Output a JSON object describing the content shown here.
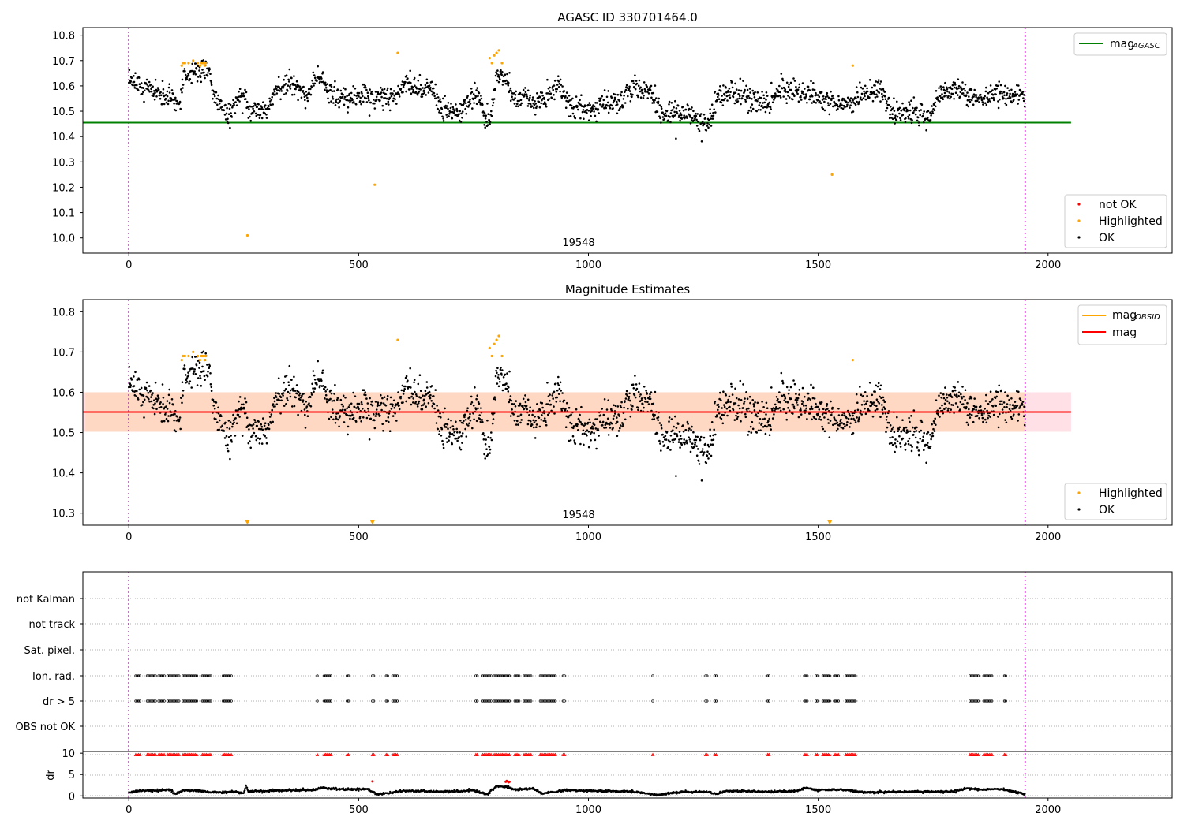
{
  "chart_data": [
    {
      "type": "scatter",
      "title": "AGASC ID 330701464.0",
      "annotation": "19548",
      "xlim": [
        -100,
        2270
      ],
      "ylim": [
        9.94,
        10.83
      ],
      "xticks": [
        0,
        500,
        1000,
        1500,
        2000
      ],
      "xtick_labels": [
        "0",
        "500",
        "1000",
        "1500",
        "2000"
      ],
      "yticks": [
        10.0,
        10.1,
        10.2,
        10.3,
        10.4,
        10.5,
        10.6,
        10.7,
        10.8
      ],
      "ytick_labels": [
        "10.0",
        "10.1",
        "10.2",
        "10.3",
        "10.4",
        "10.5",
        "10.6",
        "10.7",
        "10.8"
      ],
      "vlines": [
        0,
        1950
      ],
      "hline": {
        "name_main": "mag",
        "name_sub": "AGASC",
        "y": 10.455,
        "x": [
          -100,
          2050
        ],
        "color": "#008000"
      },
      "legend_lines_placement": "top-right",
      "legend_points_placement": "lower-right",
      "legend_points": [
        {
          "label": "not OK",
          "color": "#ff0000"
        },
        {
          "label": "Highlighted",
          "color": "#ffa500"
        },
        {
          "label": "OK",
          "color": "#000000"
        }
      ],
      "series": [
        {
          "name": "OK",
          "color": "#000000",
          "profile_x": [
            0,
            15,
            40,
            70,
            95,
            110,
            120,
            140,
            160,
            175,
            185,
            200,
            215,
            225,
            240,
            255,
            265,
            280,
            300,
            320,
            340,
            360,
            375,
            390,
            400,
            420,
            440,
            470,
            500,
            520,
            540,
            560,
            580,
            600,
            620,
            640,
            660,
            680,
            700,
            720,
            740,
            760,
            775,
            785,
            800,
            820,
            840,
            860,
            880,
            900,
            920,
            940,
            960,
            980,
            1000,
            1020,
            1040,
            1060,
            1080,
            1100,
            1120,
            1140,
            1160,
            1180,
            1200,
            1220,
            1240,
            1260,
            1280,
            1300,
            1320,
            1340,
            1360,
            1380,
            1400,
            1420,
            1440,
            1460,
            1480,
            1500,
            1520,
            1540,
            1560,
            1580,
            1600,
            1620,
            1640,
            1660,
            1680,
            1700,
            1720,
            1740,
            1760,
            1780,
            1800,
            1820,
            1840,
            1860,
            1880,
            1900,
            1920,
            1950
          ],
          "profile_y": [
            10.6,
            10.61,
            10.59,
            10.57,
            10.55,
            10.52,
            10.64,
            10.66,
            10.66,
            10.66,
            10.55,
            10.53,
            10.48,
            10.51,
            10.55,
            10.56,
            10.5,
            10.5,
            10.51,
            10.59,
            10.61,
            10.6,
            10.57,
            10.56,
            10.62,
            10.63,
            10.56,
            10.55,
            10.55,
            10.56,
            10.54,
            10.56,
            10.56,
            10.61,
            10.6,
            10.58,
            10.6,
            10.5,
            10.51,
            10.5,
            10.53,
            10.57,
            10.48,
            10.46,
            10.64,
            10.63,
            10.55,
            10.55,
            10.53,
            10.54,
            10.57,
            10.59,
            10.52,
            10.51,
            10.51,
            10.52,
            10.53,
            10.53,
            10.56,
            10.6,
            10.58,
            10.55,
            10.5,
            10.49,
            10.49,
            10.5,
            10.45,
            10.45,
            10.55,
            10.57,
            10.57,
            10.56,
            10.54,
            10.54,
            10.54,
            10.58,
            10.58,
            10.57,
            10.57,
            10.56,
            10.54,
            10.53,
            10.53,
            10.55,
            10.57,
            10.58,
            10.58,
            10.49,
            10.49,
            10.5,
            10.49,
            10.47,
            10.56,
            10.58,
            10.59,
            10.57,
            10.55,
            10.55,
            10.57,
            10.57,
            10.56,
            10.58
          ],
          "count": 1950,
          "noise": 0.022
        },
        {
          "name": "Highlighted",
          "color": "#ffa500",
          "x": [
            115,
            118,
            122,
            130,
            140,
            150,
            155,
            158,
            160,
            163,
            165,
            167,
            258,
            535,
            585,
            785,
            790,
            795,
            800,
            805,
            812,
            1530,
            1575
          ],
          "y": [
            10.68,
            10.69,
            10.69,
            10.69,
            10.7,
            10.69,
            10.68,
            10.69,
            10.69,
            10.69,
            10.68,
            10.69,
            10.01,
            10.21,
            10.73,
            10.71,
            10.69,
            10.72,
            10.73,
            10.74,
            10.69,
            10.25,
            10.68
          ]
        }
      ]
    },
    {
      "type": "scatter",
      "title": "Magnitude Estimates",
      "annotation": "19548",
      "xlim": [
        -100,
        2270
      ],
      "ylim": [
        10.27,
        10.83
      ],
      "xticks": [
        0,
        500,
        1000,
        1500,
        2000
      ],
      "xtick_labels": [
        "0",
        "500",
        "1000",
        "1500",
        "2000"
      ],
      "yticks": [
        10.3,
        10.4,
        10.5,
        10.6,
        10.7,
        10.8
      ],
      "ytick_labels": [
        "10.3",
        "10.4",
        "10.5",
        "10.6",
        "10.7",
        "10.8"
      ],
      "vlines": [
        0,
        1950
      ],
      "band": {
        "y": [
          10.502,
          10.6
        ],
        "x": [
          -100,
          2050
        ],
        "fill_outer": "#ffe0e6",
        "fill_inner": "#ffd8c4"
      },
      "lines": [
        {
          "name_main": "mag",
          "name_sub": "OBSID",
          "color": "#ffa500"
        },
        {
          "name_main": "mag",
          "name_sub": "",
          "color": "#ff0000",
          "y": 10.551,
          "x": [
            -100,
            2050
          ]
        }
      ],
      "offscale_markers_x": [
        258,
        530,
        1525
      ],
      "legend_lines_placement": "top-right",
      "legend_points_placement": "lower-right",
      "legend_points": [
        {
          "label": "Highlighted",
          "color": "#ffa500"
        },
        {
          "label": "OK",
          "color": "#000000"
        }
      ]
    },
    {
      "type": "scatter",
      "title": "",
      "xlim": [
        -100,
        2270
      ],
      "xticks": [
        0,
        500,
        1000,
        1500,
        2000
      ],
      "xtick_labels": [
        "0",
        "500",
        "1000",
        "1500",
        "2000"
      ],
      "vlines": [
        0,
        1950
      ],
      "flag_rows": [
        "not Kalman",
        "not track",
        "Sat. pixel.",
        "Ion. rad.",
        "dr > 5",
        "OBS not OK"
      ],
      "flag_clusters": [
        [
          15,
          25
        ],
        [
          40,
          58
        ],
        [
          65,
          78
        ],
        [
          85,
          110
        ],
        [
          118,
          150
        ],
        [
          160,
          180
        ],
        [
          205,
          225
        ],
        [
          410,
          412
        ],
        [
          425,
          440
        ],
        [
          475,
          478
        ],
        [
          530,
          535
        ],
        [
          560,
          563
        ],
        [
          575,
          585
        ],
        [
          755,
          760
        ],
        [
          770,
          790
        ],
        [
          795,
          830
        ],
        [
          840,
          850
        ],
        [
          860,
          875
        ],
        [
          895,
          930
        ],
        [
          945,
          950
        ],
        [
          1140,
          1142
        ],
        [
          1255,
          1258
        ],
        [
          1275,
          1278
        ],
        [
          1390,
          1395
        ],
        [
          1470,
          1478
        ],
        [
          1495,
          1498
        ],
        [
          1510,
          1525
        ],
        [
          1535,
          1545
        ],
        [
          1560,
          1582
        ],
        [
          1830,
          1850
        ],
        [
          1860,
          1880
        ],
        [
          1905,
          1908
        ]
      ],
      "dr_panel": {
        "ylabel": "dr",
        "yticks": [
          0,
          5,
          10
        ],
        "ytick_labels": [
          "0",
          "5",
          "10"
        ],
        "ylim": [
          -0.5,
          10.4
        ],
        "profile_x": [
          0,
          30,
          60,
          90,
          100,
          120,
          150,
          175,
          200,
          230,
          250,
          255,
          260,
          300,
          350,
          400,
          420,
          470,
          520,
          540,
          600,
          650,
          700,
          750,
          780,
          800,
          820,
          840,
          880,
          900,
          950,
          1000,
          1050,
          1100,
          1150,
          1200,
          1250,
          1280,
          1300,
          1350,
          1400,
          1450,
          1470,
          1500,
          1550,
          1600,
          1650,
          1700,
          1750,
          1800,
          1820,
          1850,
          1900,
          1950
        ],
        "profile_y": [
          0.8,
          1.3,
          1.2,
          1.5,
          0.4,
          1.4,
          1.2,
          0.9,
          0.8,
          1.0,
          0.6,
          2.4,
          1.0,
          1.2,
          1.3,
          1.4,
          1.9,
          1.5,
          1.6,
          0.3,
          1.2,
          1.1,
          1.0,
          1.3,
          0.4,
          2.3,
          2.1,
          1.5,
          1.7,
          0.5,
          1.4,
          1.2,
          1.1,
          1.0,
          0.2,
          0.9,
          1.0,
          0.5,
          1.2,
          1.1,
          1.0,
          1.1,
          1.8,
          1.4,
          1.5,
          0.8,
          0.9,
          1.0,
          1.0,
          1.1,
          1.8,
          1.5,
          1.6,
          0.4
        ],
        "red_points_x": [
          530,
          820,
          822,
          824,
          826,
          828
        ],
        "red_points_y": [
          3.4,
          3.3,
          3.5,
          3.4,
          3.2,
          3.3
        ],
        "markers_at": 10
      }
    }
  ]
}
